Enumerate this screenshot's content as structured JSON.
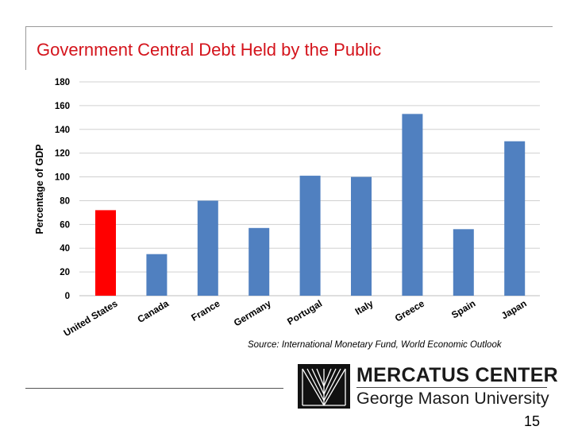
{
  "slide": {
    "title": "Government Central Debt Held by the Public",
    "source": "Source: International Monetary Fund, World Economic Outlook",
    "page_number": "15"
  },
  "logo": {
    "name": "MERCATUS CENTER",
    "subtitle": "George Mason University"
  },
  "chart_data": {
    "type": "bar",
    "title": "",
    "xlabel": "",
    "ylabel": "Percentage of GDP",
    "ylim": [
      0,
      180
    ],
    "yticks": [
      0,
      20,
      40,
      60,
      80,
      100,
      120,
      140,
      160,
      180
    ],
    "grid": true,
    "categories": [
      "United States",
      "Canada",
      "France",
      "Germany",
      "Portugal",
      "Italy",
      "Greece",
      "Spain",
      "Japan"
    ],
    "values": [
      72,
      35,
      80,
      57,
      101,
      100,
      153,
      56,
      130
    ],
    "colors": {
      "highlight": "#ff0000",
      "default": "#5080c0",
      "grid": "#d0d0d0"
    },
    "highlight_index": 0
  }
}
